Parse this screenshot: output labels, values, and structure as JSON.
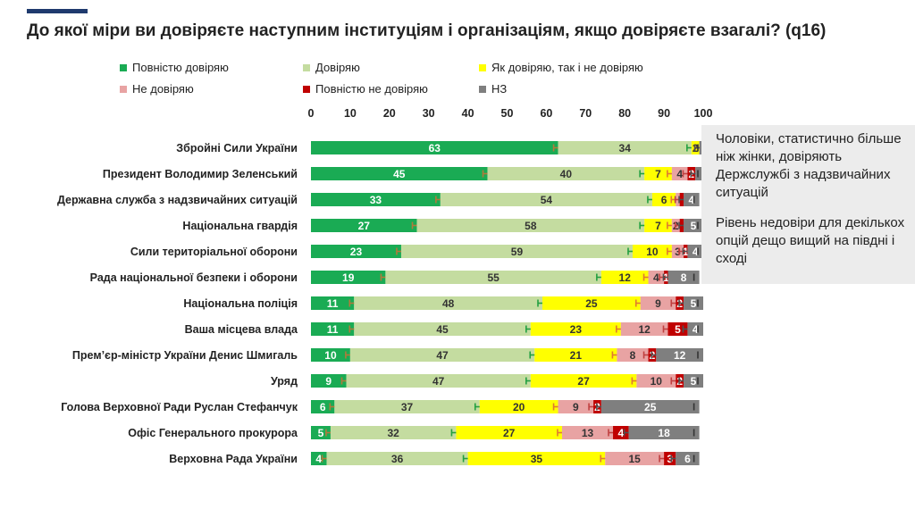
{
  "title": "До якої міри ви довіряєте наступним інституціям і організаціям, якщо довіряєте взагалі? (q16)",
  "side_note": {
    "p1": "Чоловіки, статистично більше ніж жінки, довіряють Держслужбі з надзвичайних ситуацій",
    "p2": "Рівень недовіри для декількох опцій дещо вищий на півдні і сході"
  },
  "chart_data": {
    "type": "bar",
    "orientation": "horizontal",
    "stacked": true,
    "title": "До якої міри ви довіряєте наступним інституціям і організаціям, якщо довіряєте взагалі? (q16)",
    "xlim": [
      0,
      100
    ],
    "x_ticks": [
      "0",
      "10",
      "20",
      "30",
      "40",
      "50",
      "60",
      "70",
      "80",
      "90",
      "100"
    ],
    "legend_position": "top",
    "grid": false,
    "error_bars": true,
    "categories": [
      "Збройні Сили України",
      "Президент Володимир Зеленський",
      "Державна служба з надзвичайних ситуацій",
      "Національна гвардія",
      "Сили територіальної оборони",
      "Рада національної безпеки і оборони",
      "Національна поліція",
      "Ваша місцева влада",
      "Прем’єр-міністр України Денис Шмигаль",
      "Уряд",
      "Голова Верховної Ради Руслан Стефанчук",
      "Офіс Генерального прокурора",
      "Верховна Рада України"
    ],
    "series": [
      {
        "name": "Повністю довіряю",
        "color": "#1aab54",
        "label_color": "#ffffff",
        "values": [
          63,
          45,
          33,
          27,
          23,
          19,
          11,
          11,
          10,
          9,
          6,
          5,
          4
        ]
      },
      {
        "name": "Довіряю",
        "color": "#c4dca0",
        "label_color": "#333333",
        "values": [
          34,
          40,
          54,
          58,
          59,
          55,
          48,
          45,
          47,
          47,
          37,
          32,
          36
        ]
      },
      {
        "name": "Як довіряю, так і не довіряю",
        "color": "#ffff00",
        "label_color": "#333333",
        "values": [
          2,
          7,
          6,
          7,
          10,
          12,
          25,
          23,
          21,
          27,
          20,
          27,
          35
        ]
      },
      {
        "name": "Не довіряю",
        "color": "#e8a3a3",
        "label_color": "#333333",
        "values": [
          0,
          4,
          1,
          2,
          3,
          4,
          9,
          12,
          8,
          10,
          9,
          13,
          15
        ]
      },
      {
        "name": "Повністю не довіряю",
        "color": "#c00000",
        "label_color": "#ffffff",
        "values": [
          0,
          2,
          1,
          1,
          1,
          1,
          2,
          5,
          2,
          2,
          2,
          4,
          3
        ]
      },
      {
        "name": "НЗ",
        "color": "#7f7f7f",
        "label_color": "#ffffff",
        "values": [
          1,
          2,
          4,
          5,
          4,
          8,
          5,
          4,
          12,
          5,
          25,
          18,
          6
        ]
      }
    ],
    "value_labels": [
      [
        "63",
        "34",
        "2",
        "",
        "",
        ""
      ],
      [
        "45",
        "40",
        "7",
        "4",
        "2",
        ""
      ],
      [
        "33",
        "54",
        "6",
        "",
        "",
        "4"
      ],
      [
        "27",
        "58",
        "7",
        "2",
        "",
        "5"
      ],
      [
        "23",
        "59",
        "10",
        "3",
        "1",
        "4"
      ],
      [
        "19",
        "55",
        "12",
        "4",
        "1",
        "8"
      ],
      [
        "11",
        "48",
        "25",
        "9",
        "2",
        "5"
      ],
      [
        "11",
        "45",
        "23",
        "12",
        "5",
        "4"
      ],
      [
        "10",
        "47",
        "21",
        "8",
        "2",
        "12"
      ],
      [
        "9",
        "47",
        "27",
        "10",
        "2",
        "5"
      ],
      [
        "6",
        "37",
        "20",
        "9",
        "2",
        "25"
      ],
      [
        "5",
        "32",
        "27",
        "13",
        "4",
        "18"
      ],
      [
        "4",
        "36",
        "35",
        "15",
        "3",
        "6"
      ]
    ]
  }
}
